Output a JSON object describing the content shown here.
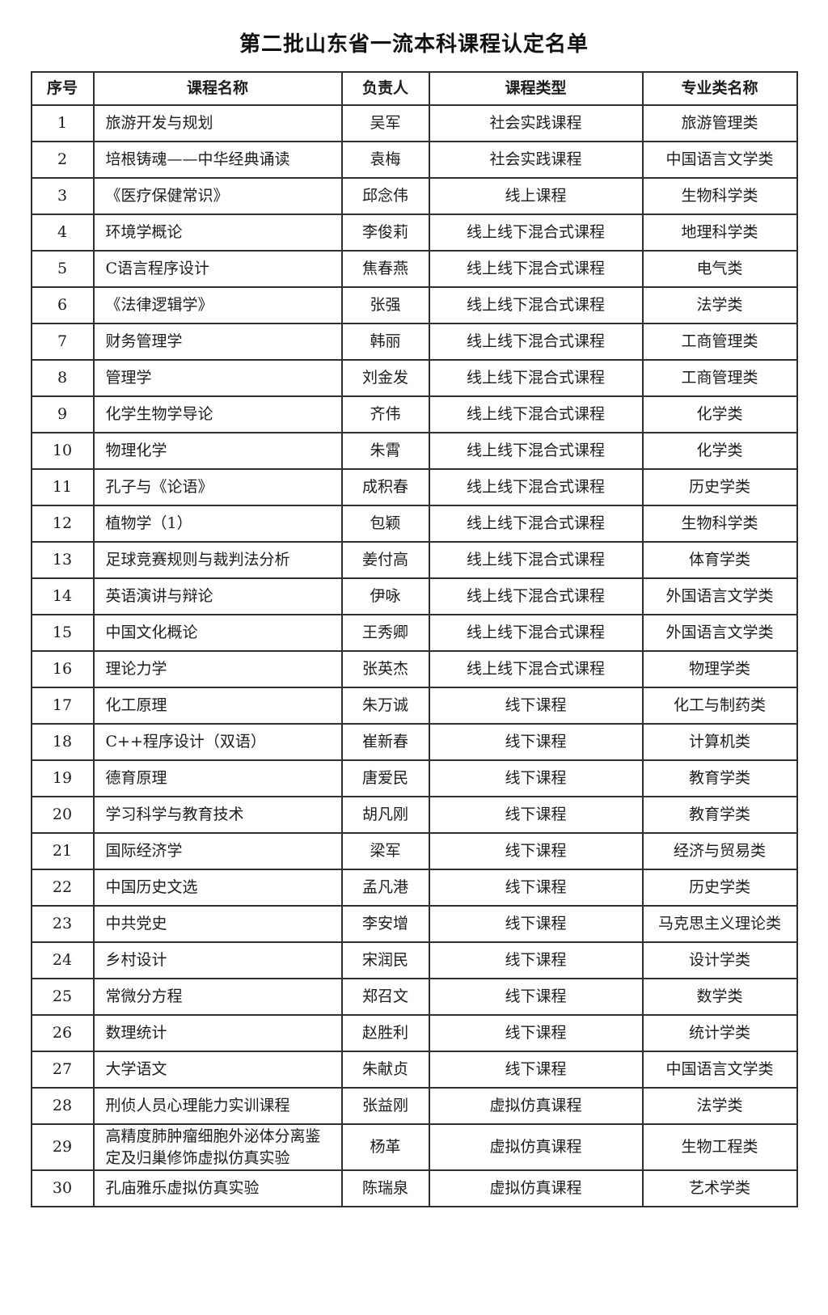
{
  "page": {
    "title": "第二批山东省一流本科课程认定名单"
  },
  "table": {
    "columns": [
      "序号",
      "课程名称",
      "负责人",
      "课程类型",
      "专业类名称"
    ],
    "rows": [
      {
        "no": "1",
        "course": "旅游开发与规划",
        "leader": "吴军",
        "type": "社会实践课程",
        "category": "旅游管理类"
      },
      {
        "no": "2",
        "course": "培根铸魂——中华经典诵读",
        "leader": "袁梅",
        "type": "社会实践课程",
        "category": "中国语言文学类"
      },
      {
        "no": "3",
        "course": "《医疗保健常识》",
        "leader": "邱念伟",
        "type": "线上课程",
        "category": "生物科学类"
      },
      {
        "no": "4",
        "course": "环境学概论",
        "leader": "李俊莉",
        "type": "线上线下混合式课程",
        "category": "地理科学类"
      },
      {
        "no": "5",
        "course": "C语言程序设计",
        "leader": "焦春燕",
        "type": "线上线下混合式课程",
        "category": "电气类"
      },
      {
        "no": "6",
        "course": "《法律逻辑学》",
        "leader": "张强",
        "type": "线上线下混合式课程",
        "category": "法学类"
      },
      {
        "no": "7",
        "course": "财务管理学",
        "leader": "韩丽",
        "type": "线上线下混合式课程",
        "category": "工商管理类"
      },
      {
        "no": "8",
        "course": "管理学",
        "leader": "刘金发",
        "type": "线上线下混合式课程",
        "category": "工商管理类"
      },
      {
        "no": "9",
        "course": "化学生物学导论",
        "leader": "齐伟",
        "type": "线上线下混合式课程",
        "category": "化学类"
      },
      {
        "no": "10",
        "course": "物理化学",
        "leader": "朱霄",
        "type": "线上线下混合式课程",
        "category": "化学类"
      },
      {
        "no": "11",
        "course": "孔子与《论语》",
        "leader": "成积春",
        "type": "线上线下混合式课程",
        "category": "历史学类"
      },
      {
        "no": "12",
        "course": "植物学（1）",
        "leader": "包颖",
        "type": "线上线下混合式课程",
        "category": "生物科学类"
      },
      {
        "no": "13",
        "course": "足球竞赛规则与裁判法分析",
        "leader": "姜付高",
        "type": "线上线下混合式课程",
        "category": "体育学类"
      },
      {
        "no": "14",
        "course": "英语演讲与辩论",
        "leader": "伊咏",
        "type": "线上线下混合式课程",
        "category": "外国语言文学类"
      },
      {
        "no": "15",
        "course": "中国文化概论",
        "leader": "王秀卿",
        "type": "线上线下混合式课程",
        "category": "外国语言文学类"
      },
      {
        "no": "16",
        "course": "理论力学",
        "leader": "张英杰",
        "type": "线上线下混合式课程",
        "category": "物理学类"
      },
      {
        "no": "17",
        "course": "化工原理",
        "leader": "朱万诚",
        "type": "线下课程",
        "category": "化工与制药类"
      },
      {
        "no": "18",
        "course": "C++程序设计（双语）",
        "leader": "崔新春",
        "type": "线下课程",
        "category": "计算机类"
      },
      {
        "no": "19",
        "course": "德育原理",
        "leader": "唐爱民",
        "type": "线下课程",
        "category": "教育学类"
      },
      {
        "no": "20",
        "course": "学习科学与教育技术",
        "leader": "胡凡刚",
        "type": "线下课程",
        "category": "教育学类"
      },
      {
        "no": "21",
        "course": "国际经济学",
        "leader": "梁军",
        "type": "线下课程",
        "category": "经济与贸易类"
      },
      {
        "no": "22",
        "course": "中国历史文选",
        "leader": "孟凡港",
        "type": "线下课程",
        "category": "历史学类"
      },
      {
        "no": "23",
        "course": "中共党史",
        "leader": "李安增",
        "type": "线下课程",
        "category": "马克思主义理论类"
      },
      {
        "no": "24",
        "course": "乡村设计",
        "leader": "宋润民",
        "type": "线下课程",
        "category": "设计学类"
      },
      {
        "no": "25",
        "course": "常微分方程",
        "leader": "郑召文",
        "type": "线下课程",
        "category": "数学类"
      },
      {
        "no": "26",
        "course": "数理统计",
        "leader": "赵胜利",
        "type": "线下课程",
        "category": "统计学类"
      },
      {
        "no": "27",
        "course": "大学语文",
        "leader": "朱献贞",
        "type": "线下课程",
        "category": "中国语言文学类"
      },
      {
        "no": "28",
        "course": "刑侦人员心理能力实训课程",
        "leader": "张益刚",
        "type": "虚拟仿真课程",
        "category": "法学类"
      },
      {
        "no": "29",
        "course": "高精度肺肿瘤细胞外泌体分离鉴定及归巢修饰虚拟仿真实验",
        "leader": "杨革",
        "type": "虚拟仿真课程",
        "category": "生物工程类"
      },
      {
        "no": "30",
        "course": "孔庙雅乐虚拟仿真实验",
        "leader": "陈瑞泉",
        "type": "虚拟仿真课程",
        "category": "艺术学类"
      }
    ]
  },
  "colors": {
    "background": "#ffffff",
    "text": "#1c1c1c",
    "border": "#2f2f2f"
  }
}
